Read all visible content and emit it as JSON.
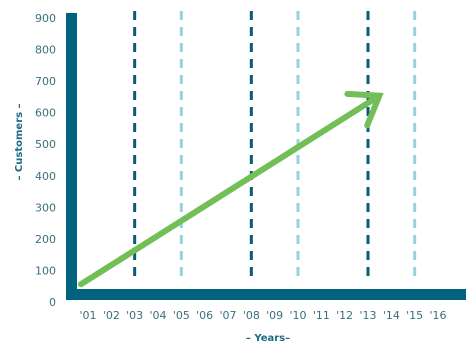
{
  "chart_data": {
    "type": "line",
    "title": "",
    "xlabel": "– Years–",
    "ylabel": "– Customers –",
    "x_ticks": [
      "'01",
      "'02",
      "'03",
      "'04",
      "'05",
      "'06",
      "'07",
      "'08",
      "'09",
      "'10",
      "'11",
      "'12",
      "'13",
      "'14",
      "'15",
      "'16"
    ],
    "y_ticks": [
      "0",
      "100",
      "200",
      "300",
      "400",
      "500",
      "600",
      "700",
      "800",
      "900"
    ],
    "ylim": [
      0,
      900
    ],
    "xlim": [
      2001,
      2016
    ],
    "grid": "vertical dashed lines",
    "dark_gridlines_x": [
      2003,
      2008,
      2013
    ],
    "light_gridlines_x": [
      2005,
      2010,
      2015
    ],
    "series": [
      {
        "x": [
          2001,
          2014
        ],
        "y": [
          50,
          660
        ],
        "arrowhead": true
      }
    ],
    "colors": {
      "axis": "#00627e",
      "gridline_dark": "#0c5a74",
      "gridline_light": "#93d4df",
      "trend": "#72be57",
      "tick_text": "#3c6f80"
    }
  }
}
